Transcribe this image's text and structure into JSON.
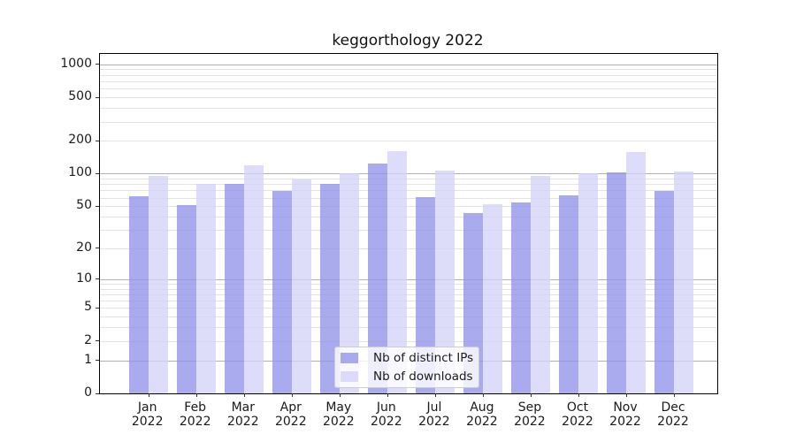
{
  "figure": {
    "background": "#ffffff"
  },
  "chart_data": {
    "type": "bar",
    "title": "keggorthology 2022",
    "xlabel": "",
    "ylabel": "",
    "yscale": "log1p",
    "ylim": [
      0,
      1250
    ],
    "yticks": [
      0,
      1,
      2,
      5,
      10,
      20,
      50,
      100,
      200,
      500,
      1000
    ],
    "grid": {
      "major": "on",
      "minor": "on"
    },
    "categories": [
      "Jan",
      "Feb",
      "Mar",
      "Apr",
      "May",
      "Jun",
      "Jul",
      "Aug",
      "Sep",
      "Oct",
      "Nov",
      "Dec"
    ],
    "x_year_line": "2022",
    "series": [
      {
        "name": "Nb of distinct IPs",
        "color": "#aaaaee",
        "fill_rgba": "rgba(146,146,233,0.78)",
        "values": [
          62,
          51,
          80,
          69,
          80,
          124,
          61,
          43,
          54,
          63,
          102,
          69
        ]
      },
      {
        "name": "Nb of downloads",
        "color": "#ddddfa",
        "fill_rgba": "rgba(211,211,249,0.78)",
        "values": [
          95,
          80,
          119,
          89,
          100,
          160,
          106,
          52,
          95,
          100,
          158,
          104
        ]
      }
    ],
    "legend": {
      "position": "lower center, inside axes"
    },
    "colors": {
      "grid_major": "#b0b0b0",
      "grid_minor": "#e3e3e3",
      "axis": "#000000",
      "text": "#1a1a1a",
      "legend_border": "#cccccc",
      "legend_bg": "#ffffff"
    }
  }
}
